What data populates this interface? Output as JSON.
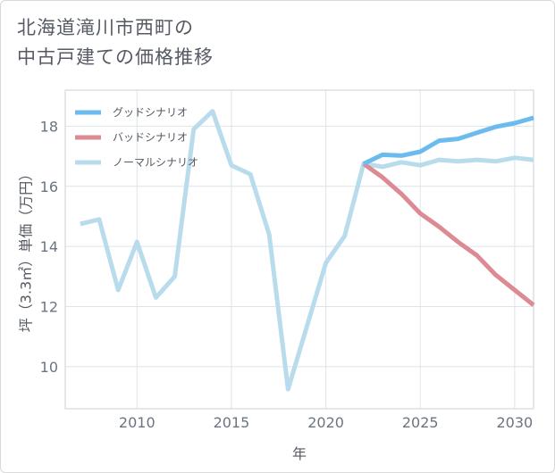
{
  "title_lines": [
    "北海道滝川市西町の",
    "中古戸建ての価格推移"
  ],
  "chart_data": {
    "type": "line",
    "xlabel": "年",
    "ylabel": "坪（3.3㎡）単価（万円）",
    "xlim": [
      2006.2,
      2031
    ],
    "ylim": [
      8.6,
      19.2
    ],
    "x_ticks": [
      2010,
      2015,
      2020,
      2025,
      2030
    ],
    "y_ticks": [
      10,
      12,
      14,
      16,
      18
    ],
    "grid": true,
    "legend_position": "top-left",
    "series": [
      {
        "name": "グッドシナリオ",
        "color": "#6cbbef",
        "x": [
          2022,
          2023,
          2024,
          2025,
          2026,
          2027,
          2028,
          2029,
          2030,
          2031
        ],
        "y": [
          16.75,
          17.05,
          17.02,
          17.15,
          17.52,
          17.58,
          17.78,
          17.98,
          18.1,
          18.28
        ]
      },
      {
        "name": "バッドシナリオ",
        "color": "#dc8a93",
        "x": [
          2022,
          2023,
          2024,
          2025,
          2026,
          2027,
          2028,
          2029,
          2030,
          2031
        ],
        "y": [
          16.75,
          16.3,
          15.75,
          15.1,
          14.65,
          14.15,
          13.7,
          13.05,
          12.55,
          12.05
        ]
      },
      {
        "name": "ノーマルシナリオ",
        "color": "#b9dcec",
        "x": [
          2007,
          2008,
          2009,
          2010,
          2011,
          2012,
          2013,
          2014,
          2015,
          2016,
          2017,
          2018,
          2019,
          2020,
          2021,
          2022,
          2023,
          2024,
          2025,
          2026,
          2027,
          2028,
          2029,
          2030,
          2031
        ],
        "y": [
          14.75,
          14.9,
          12.55,
          14.15,
          12.3,
          13.0,
          17.9,
          18.5,
          16.7,
          16.4,
          14.4,
          9.25,
          11.35,
          13.45,
          14.35,
          16.75,
          16.65,
          16.8,
          16.7,
          16.88,
          16.83,
          16.88,
          16.83,
          16.95,
          16.88
        ]
      }
    ]
  }
}
